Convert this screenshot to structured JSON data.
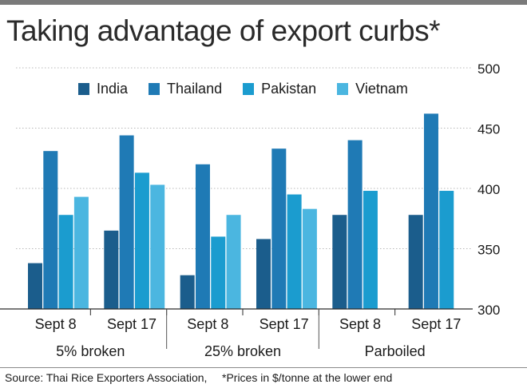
{
  "title": "Taking advantage of export curbs*",
  "source": "Source: Thai Rice Exporters Association,",
  "note": "*Prices in $/tonne at the lower end",
  "colors": {
    "India": "#1b5d8c",
    "Thailand": "#1f7ab5",
    "Pakistan": "#1b9ccf",
    "Vietnam": "#4bb6e0",
    "grid": "#b8b8b8",
    "axis": "#2a2a2a"
  },
  "chart_data": {
    "type": "bar",
    "title": "Taking advantage of export curbs*",
    "xlabel": "",
    "ylabel": "",
    "ylim": [
      300,
      500
    ],
    "yticks": [
      300,
      350,
      400,
      450,
      500
    ],
    "y_axis_position": "right",
    "grid": true,
    "legend_position": "top-left",
    "groups": [
      "5% broken",
      "25% broken",
      "Parboiled"
    ],
    "categories": [
      "Sept 8",
      "Sept 17",
      "Sept 8",
      "Sept 17",
      "Sept 8",
      "Sept 17"
    ],
    "category_groups": [
      0,
      0,
      1,
      1,
      2,
      2
    ],
    "series": [
      {
        "name": "India",
        "values": [
          338,
          365,
          328,
          358,
          378,
          378
        ]
      },
      {
        "name": "Thailand",
        "values": [
          431,
          444,
          420,
          433,
          440,
          462
        ]
      },
      {
        "name": "Pakistan",
        "values": [
          378,
          413,
          360,
          395,
          398,
          398
        ]
      },
      {
        "name": "Vietnam",
        "values": [
          393,
          403,
          378,
          383,
          null,
          null
        ]
      }
    ]
  }
}
